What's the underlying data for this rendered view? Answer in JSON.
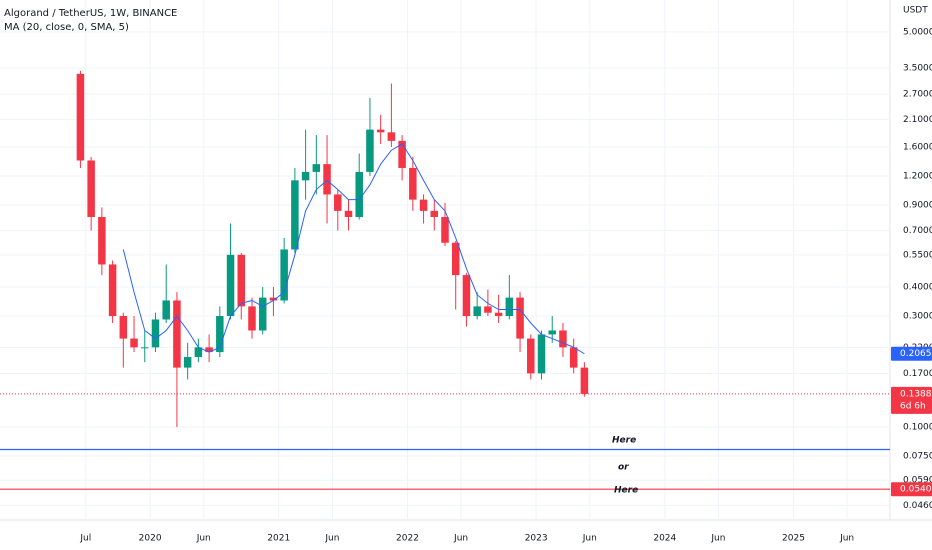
{
  "chart_data": {
    "type": "candlestick",
    "title": "Algorand / TetherUS, 1W, BINANCE",
    "unit": "USDT",
    "log_scale": true,
    "grid": true,
    "up_color": "#089981",
    "down_color": "#f23645",
    "x": [
      "2019-06",
      "2019-07",
      "2019-08",
      "2019-09",
      "2019-10",
      "2019-11",
      "2019-12",
      "2020-01",
      "2020-02",
      "2020-03",
      "2020-04",
      "2020-05",
      "2020-06",
      "2020-07",
      "2020-08",
      "2020-09",
      "2020-10",
      "2020-11",
      "2020-12",
      "2021-01",
      "2021-02",
      "2021-03",
      "2021-04",
      "2021-05",
      "2021-06",
      "2021-07",
      "2021-08",
      "2021-09",
      "2021-10",
      "2021-11",
      "2021-12",
      "2022-01",
      "2022-02",
      "2022-03",
      "2022-04",
      "2022-05",
      "2022-06",
      "2022-07",
      "2022-08",
      "2022-09",
      "2022-10",
      "2022-11",
      "2022-12",
      "2023-01",
      "2023-02",
      "2023-03",
      "2023-04",
      "2023-05"
    ],
    "open": [
      3.3,
      1.4,
      0.8,
      0.5,
      0.3,
      0.24,
      0.22,
      0.22,
      0.29,
      0.35,
      0.18,
      0.2,
      0.22,
      0.21,
      0.3,
      0.55,
      0.33,
      0.26,
      0.36,
      0.35,
      0.58,
      1.15,
      1.25,
      1.35,
      1.0,
      0.85,
      0.8,
      1.25,
      1.9,
      1.85,
      1.7,
      1.3,
      0.95,
      0.85,
      0.8,
      0.62,
      0.45,
      0.3,
      0.33,
      0.31,
      0.3,
      0.36,
      0.24,
      0.17,
      0.25,
      0.26,
      0.22,
      0.18
    ],
    "high": [
      3.4,
      1.45,
      0.88,
      0.52,
      0.31,
      0.3,
      0.26,
      0.31,
      0.5,
      0.38,
      0.23,
      0.24,
      0.25,
      0.33,
      0.75,
      0.56,
      0.36,
      0.4,
      0.4,
      0.65,
      1.3,
      1.9,
      1.8,
      1.8,
      1.05,
      0.95,
      1.5,
      2.6,
      2.2,
      3.0,
      1.8,
      1.45,
      1.0,
      0.95,
      0.92,
      0.63,
      0.46,
      0.38,
      0.39,
      0.37,
      0.45,
      0.38,
      0.25,
      0.26,
      0.3,
      0.28,
      0.24,
      0.19
    ],
    "low": [
      1.3,
      0.7,
      0.45,
      0.28,
      0.18,
      0.21,
      0.19,
      0.21,
      0.28,
      0.1,
      0.16,
      0.19,
      0.19,
      0.2,
      0.29,
      0.29,
      0.24,
      0.25,
      0.3,
      0.34,
      0.56,
      0.95,
      1.0,
      0.75,
      0.7,
      0.7,
      0.78,
      1.2,
      1.65,
      1.6,
      1.15,
      0.85,
      0.75,
      0.7,
      0.6,
      0.32,
      0.27,
      0.29,
      0.3,
      0.28,
      0.29,
      0.21,
      0.16,
      0.16,
      0.23,
      0.2,
      0.17,
      0.135
    ],
    "close": [
      1.4,
      0.8,
      0.5,
      0.3,
      0.24,
      0.22,
      0.22,
      0.29,
      0.35,
      0.18,
      0.2,
      0.22,
      0.21,
      0.3,
      0.55,
      0.33,
      0.26,
      0.36,
      0.35,
      0.58,
      1.15,
      1.25,
      1.35,
      1.0,
      0.85,
      0.8,
      1.25,
      1.9,
      1.85,
      1.7,
      1.3,
      0.95,
      0.85,
      0.8,
      0.62,
      0.45,
      0.3,
      0.33,
      0.31,
      0.3,
      0.36,
      0.24,
      0.17,
      0.25,
      0.26,
      0.22,
      0.18,
      0.1388
    ],
    "overlays": [
      {
        "name": "MA (20, close, 0, SMA, 5)",
        "color": "#2962ff",
        "values": [
          null,
          null,
          null,
          null,
          0.58,
          0.38,
          0.26,
          0.24,
          0.26,
          0.3,
          0.26,
          0.22,
          0.21,
          0.22,
          0.3,
          0.34,
          0.35,
          0.33,
          0.35,
          0.38,
          0.55,
          0.85,
          1.05,
          1.15,
          1.05,
          0.95,
          0.95,
          1.1,
          1.35,
          1.55,
          1.65,
          1.4,
          1.15,
          0.95,
          0.85,
          0.65,
          0.48,
          0.37,
          0.34,
          0.32,
          0.32,
          0.32,
          0.28,
          0.25,
          0.24,
          0.23,
          0.22,
          0.2065
        ]
      }
    ],
    "xlim": [
      "2018-11",
      "2025-10"
    ],
    "xticks": [
      {
        "value": "2019-07",
        "label": "Jul"
      },
      {
        "value": "2020-01",
        "label": "2020"
      },
      {
        "value": "2020-06",
        "label": "Jun"
      },
      {
        "value": "2021-01",
        "label": "2021"
      },
      {
        "value": "2021-06",
        "label": "Jun"
      },
      {
        "value": "2022-01",
        "label": "2022"
      },
      {
        "value": "2022-06",
        "label": "Jun"
      },
      {
        "value": "2023-01",
        "label": "2023"
      },
      {
        "value": "2023-06",
        "label": "Jun"
      },
      {
        "value": "2024-01",
        "label": "2024"
      },
      {
        "value": "2024-06",
        "label": "Jun"
      },
      {
        "value": "2025-01",
        "label": "2025"
      },
      {
        "value": "2025-06",
        "label": "Jun"
      }
    ],
    "ylim": [
      0.0398,
      6.86
    ],
    "yticks": [
      {
        "value": 5,
        "label": "5.0000"
      },
      {
        "value": 3.5,
        "label": "3.5000"
      },
      {
        "value": 2.7,
        "label": "2.7000"
      },
      {
        "value": 2.1,
        "label": "2.1000"
      },
      {
        "value": 1.6,
        "label": "1.6000"
      },
      {
        "value": 1.2,
        "label": "1.2000"
      },
      {
        "value": 0.9,
        "label": "0.9000"
      },
      {
        "value": 0.7,
        "label": "0.7000"
      },
      {
        "value": 0.55,
        "label": "0.5500"
      },
      {
        "value": 0.4,
        "label": "0.4000"
      },
      {
        "value": 0.3,
        "label": "0.3000"
      },
      {
        "value": 0.22,
        "label": "0.2200"
      },
      {
        "value": 0.17,
        "label": "0.1700"
      },
      {
        "value": 0.1,
        "label": "0.1000"
      },
      {
        "value": 0.075,
        "label": "0.0750"
      },
      {
        "value": 0.059,
        "label": "0.0590"
      },
      {
        "value": 0.046,
        "label": "0.0460"
      }
    ],
    "countdown": "6d 6h",
    "hlines": [
      {
        "value": 0.08,
        "color": "#2962ff"
      },
      {
        "value": 0.054,
        "color": "#f23645",
        "label": "0.0540"
      }
    ],
    "annotations": [
      "Here",
      "or",
      "Here"
    ]
  }
}
